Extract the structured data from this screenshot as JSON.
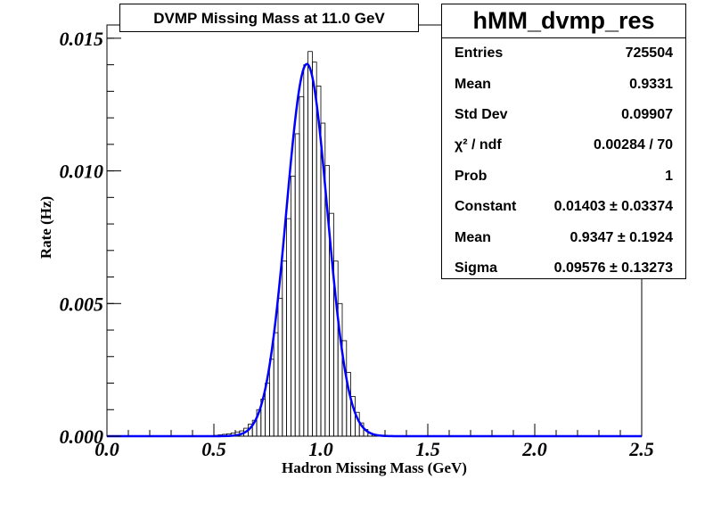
{
  "title": "DVMP Missing Mass at 11.0 GeV",
  "stats": {
    "name": "hMM_dvmp_res",
    "rows": [
      {
        "label": "Entries",
        "value": "725504"
      },
      {
        "label": "Mean",
        "value": "0.9331"
      },
      {
        "label": "Std Dev",
        "value": "0.09907"
      },
      {
        "label": "χ² / ndf",
        "value": "0.00284 / 70"
      },
      {
        "label": "Prob",
        "value": "1"
      },
      {
        "label": "Constant",
        "value": "0.01403 ± 0.03374"
      },
      {
        "label": "Mean",
        "value": "0.9347 ± 0.1924"
      },
      {
        "label": "Sigma",
        "value": "0.09576 ± 0.13273"
      }
    ]
  },
  "chart_data": {
    "type": "histogram",
    "xlabel": "Hadron Missing Mass (GeV)",
    "ylabel": "Rate (Hz)",
    "xlim": [
      0,
      2.5
    ],
    "ylim": [
      0,
      0.0155
    ],
    "x_ticks": [
      0.0,
      0.5,
      1.0,
      1.5,
      2.0,
      2.5
    ],
    "x_tick_labels": [
      "0.0",
      "0.5",
      "1.0",
      "1.5",
      "2.0",
      "2.5"
    ],
    "y_ticks": [
      0.0,
      0.005,
      0.01,
      0.015
    ],
    "y_tick_labels": [
      "0.000",
      "0.005",
      "0.010",
      "0.015"
    ],
    "bin_width": 0.02,
    "histogram_color": "#000000",
    "fit_color": "#0000ff",
    "bins": [
      {
        "x": 0.5,
        "y": 3e-05
      },
      {
        "x": 0.52,
        "y": 5e-05
      },
      {
        "x": 0.54,
        "y": 7e-05
      },
      {
        "x": 0.56,
        "y": 9e-05
      },
      {
        "x": 0.58,
        "y": 0.00012
      },
      {
        "x": 0.6,
        "y": 0.00016
      },
      {
        "x": 0.62,
        "y": 0.0002
      },
      {
        "x": 0.64,
        "y": 0.0003
      },
      {
        "x": 0.66,
        "y": 0.00045
      },
      {
        "x": 0.68,
        "y": 0.0006
      },
      {
        "x": 0.7,
        "y": 0.001
      },
      {
        "x": 0.72,
        "y": 0.0014
      },
      {
        "x": 0.74,
        "y": 0.002
      },
      {
        "x": 0.76,
        "y": 0.0029
      },
      {
        "x": 0.78,
        "y": 0.0039
      },
      {
        "x": 0.8,
        "y": 0.0052
      },
      {
        "x": 0.82,
        "y": 0.0066
      },
      {
        "x": 0.84,
        "y": 0.0082
      },
      {
        "x": 0.86,
        "y": 0.0098
      },
      {
        "x": 0.88,
        "y": 0.0114
      },
      {
        "x": 0.9,
        "y": 0.0128
      },
      {
        "x": 0.92,
        "y": 0.014
      },
      {
        "x": 0.94,
        "y": 0.0145
      },
      {
        "x": 0.96,
        "y": 0.0141
      },
      {
        "x": 0.98,
        "y": 0.0132
      },
      {
        "x": 1.0,
        "y": 0.0118
      },
      {
        "x": 1.02,
        "y": 0.0102
      },
      {
        "x": 1.04,
        "y": 0.0084
      },
      {
        "x": 1.06,
        "y": 0.0066
      },
      {
        "x": 1.08,
        "y": 0.005
      },
      {
        "x": 1.1,
        "y": 0.0036
      },
      {
        "x": 1.12,
        "y": 0.0024
      },
      {
        "x": 1.14,
        "y": 0.0015
      },
      {
        "x": 1.16,
        "y": 0.0009
      },
      {
        "x": 1.18,
        "y": 0.0005
      },
      {
        "x": 1.2,
        "y": 0.00025
      },
      {
        "x": 1.22,
        "y": 0.00012
      },
      {
        "x": 1.24,
        "y": 6e-05
      },
      {
        "x": 1.26,
        "y": 3e-05
      },
      {
        "x": 1.28,
        "y": 1e-05
      }
    ],
    "fit": {
      "type": "gaus",
      "constant": 0.01403,
      "mean": 0.9347,
      "sigma": 0.09576
    }
  }
}
